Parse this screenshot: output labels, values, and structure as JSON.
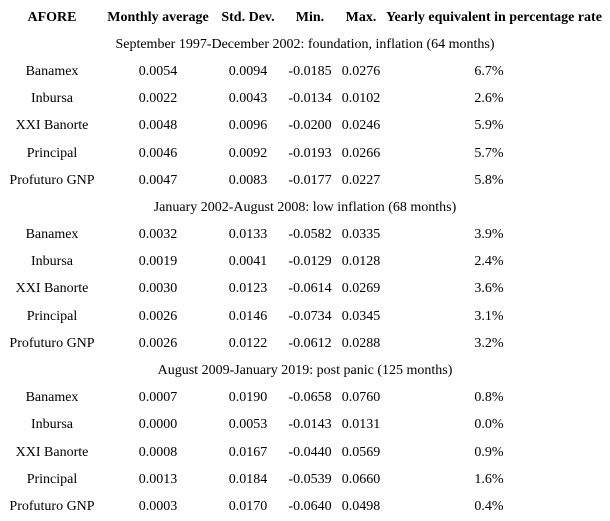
{
  "colors": {
    "background": "#ffffff",
    "text": "#000000"
  },
  "table": {
    "columns": [
      "AFORE",
      "Monthly average",
      "Std. Dev.",
      "Min.",
      "Max.",
      "Yearly equivalent in percentage rate"
    ],
    "sections": [
      {
        "title": "September 1997-December 2002: foundation, inflation (64 months)",
        "rows": [
          {
            "afore": "Banamex",
            "avg": "0.0054",
            "std": "0.0094",
            "min": "-0.0185",
            "max": "0.0276",
            "yearly": "6.7%"
          },
          {
            "afore": "Inbursa",
            "avg": "0.0022",
            "std": "0.0043",
            "min": "-0.0134",
            "max": "0.0102",
            "yearly": "2.6%"
          },
          {
            "afore": "XXI Banorte",
            "avg": "0.0048",
            "std": "0.0096",
            "min": "-0.0200",
            "max": "0.0246",
            "yearly": "5.9%"
          },
          {
            "afore": "Principal",
            "avg": "0.0046",
            "std": "0.0092",
            "min": "-0.0193",
            "max": "0.0266",
            "yearly": "5.7%"
          },
          {
            "afore": "Profuturo GNP",
            "avg": "0.0047",
            "std": "0.0083",
            "min": "-0.0177",
            "max": "0.0227",
            "yearly": "5.8%"
          }
        ]
      },
      {
        "title": "January 2002-August 2008: low inflation (68 months)",
        "rows": [
          {
            "afore": "Banamex",
            "avg": "0.0032",
            "std": "0.0133",
            "min": "-0.0582",
            "max": "0.0335",
            "yearly": "3.9%"
          },
          {
            "afore": "Inbursa",
            "avg": "0.0019",
            "std": "0.0041",
            "min": "-0.0129",
            "max": "0.0128",
            "yearly": "2.4%"
          },
          {
            "afore": "XXI Banorte",
            "avg": "0.0030",
            "std": "0.0123",
            "min": "-0.0614",
            "max": "0.0269",
            "yearly": "3.6%"
          },
          {
            "afore": "Principal",
            "avg": "0.0026",
            "std": "0.0146",
            "min": "-0.0734",
            "max": "0.0345",
            "yearly": "3.1%"
          },
          {
            "afore": "Profuturo GNP",
            "avg": "0.0026",
            "std": "0.0122",
            "min": "-0.0612",
            "max": "0.0288",
            "yearly": "3.2%"
          }
        ]
      },
      {
        "title": "August 2009-January 2019: post panic (125 months)",
        "rows": [
          {
            "afore": "Banamex",
            "avg": "0.0007",
            "std": "0.0190",
            "min": "-0.0658",
            "max": "0.0760",
            "yearly": "0.8%"
          },
          {
            "afore": "Inbursa",
            "avg": "0.0000",
            "std": "0.0053",
            "min": "-0.0143",
            "max": "0.0131",
            "yearly": "0.0%"
          },
          {
            "afore": "XXI Banorte",
            "avg": "0.0008",
            "std": "0.0167",
            "min": "-0.0440",
            "max": "0.0569",
            "yearly": "0.9%"
          },
          {
            "afore": "Principal",
            "avg": "0.0013",
            "std": "0.0184",
            "min": "-0.0539",
            "max": "0.0660",
            "yearly": "1.6%"
          },
          {
            "afore": "Profuturo GNP",
            "avg": "0.0003",
            "std": "0.0170",
            "min": "-0.0640",
            "max": "0.0498",
            "yearly": "0.4%"
          }
        ]
      }
    ]
  }
}
